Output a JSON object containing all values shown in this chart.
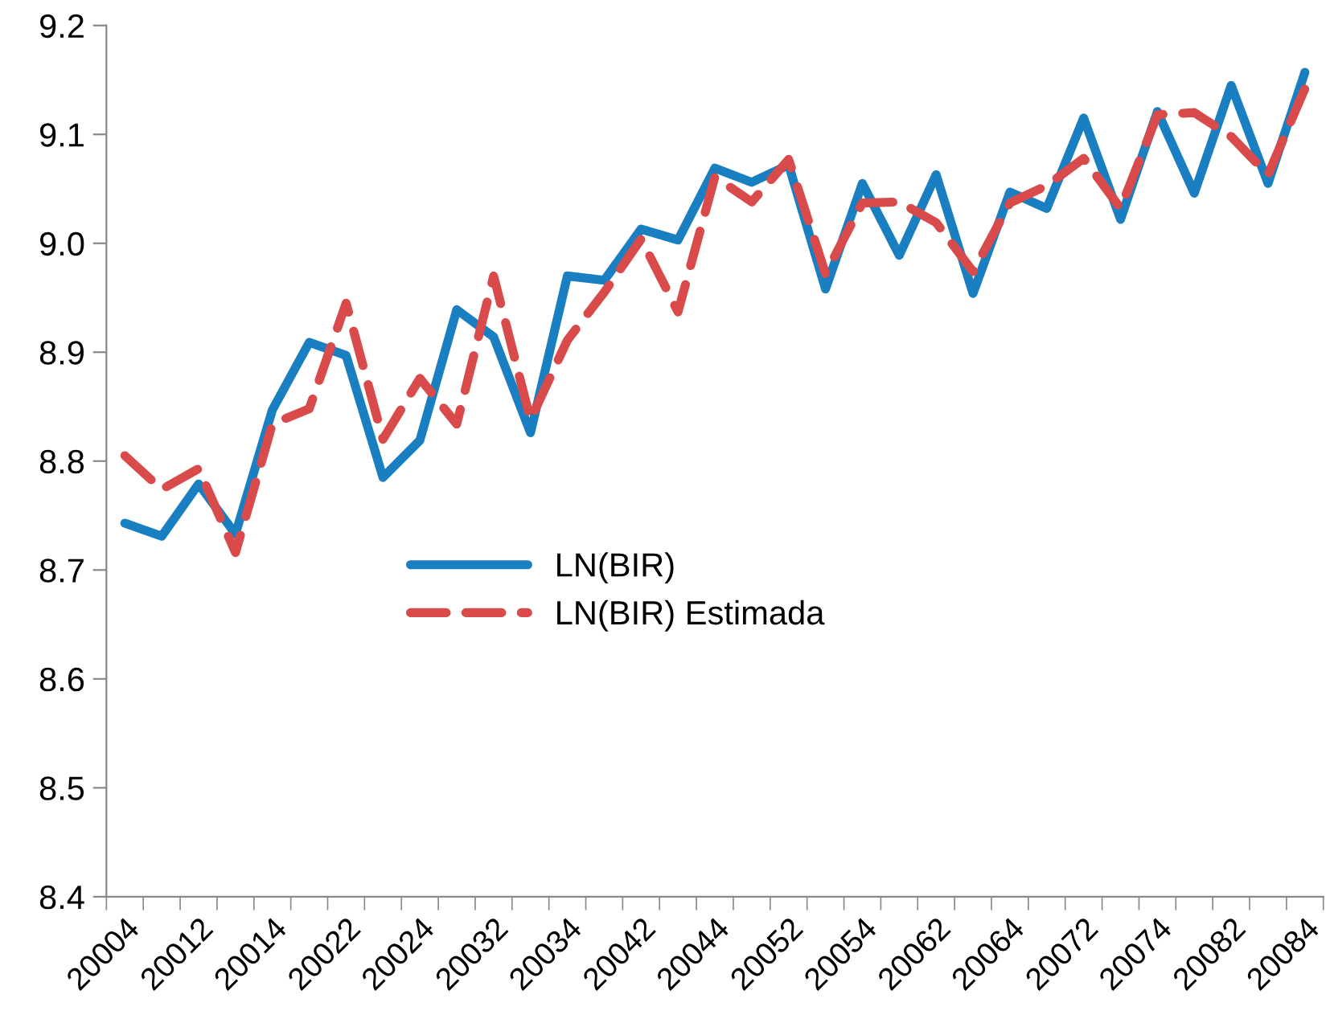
{
  "chart_data": {
    "type": "line",
    "categories": [
      "20004",
      null,
      "20012",
      null,
      "20014",
      null,
      "20022",
      null,
      "20024",
      null,
      "20032",
      null,
      "20034",
      null,
      "20042",
      null,
      "20044",
      null,
      "20052",
      null,
      "20054",
      null,
      "20062",
      null,
      "20064",
      null,
      "20072",
      null,
      "20074",
      null,
      "20082",
      null,
      "20084"
    ],
    "series": [
      {
        "name": "LN(BIR)",
        "color": "#1a7fc1",
        "line_style": "solid",
        "values": [
          8.743,
          8.731,
          8.779,
          8.733,
          8.847,
          8.909,
          8.897,
          8.785,
          8.819,
          8.939,
          8.914,
          8.826,
          8.97,
          8.966,
          9.013,
          9.003,
          9.069,
          9.056,
          9.072,
          8.958,
          9.055,
          8.989,
          9.063,
          8.954,
          9.047,
          9.032,
          9.115,
          9.022,
          9.121,
          9.046,
          9.145,
          9.055,
          9.157
        ]
      },
      {
        "name": "LN(BIR) Estimada",
        "color": "#d94a4a",
        "line_style": "dashed",
        "values": [
          8.805,
          8.774,
          8.793,
          8.716,
          8.834,
          8.848,
          8.945,
          8.82,
          8.876,
          8.834,
          8.97,
          8.838,
          8.911,
          8.955,
          9.004,
          8.937,
          9.061,
          9.038,
          9.077,
          8.972,
          9.037,
          9.038,
          9.019,
          8.974,
          9.037,
          9.053,
          9.078,
          9.032,
          9.118,
          9.12,
          9.098,
          9.063,
          9.142
        ]
      }
    ],
    "ylim": [
      8.4,
      9.2
    ],
    "yticks": [
      8.4,
      8.5,
      8.6,
      8.7,
      8.8,
      8.9,
      {
        "value": 9,
        "label": "9.0"
      },
      9.1,
      9.2
    ],
    "grid": false,
    "legend": "center",
    "marker": "none"
  }
}
